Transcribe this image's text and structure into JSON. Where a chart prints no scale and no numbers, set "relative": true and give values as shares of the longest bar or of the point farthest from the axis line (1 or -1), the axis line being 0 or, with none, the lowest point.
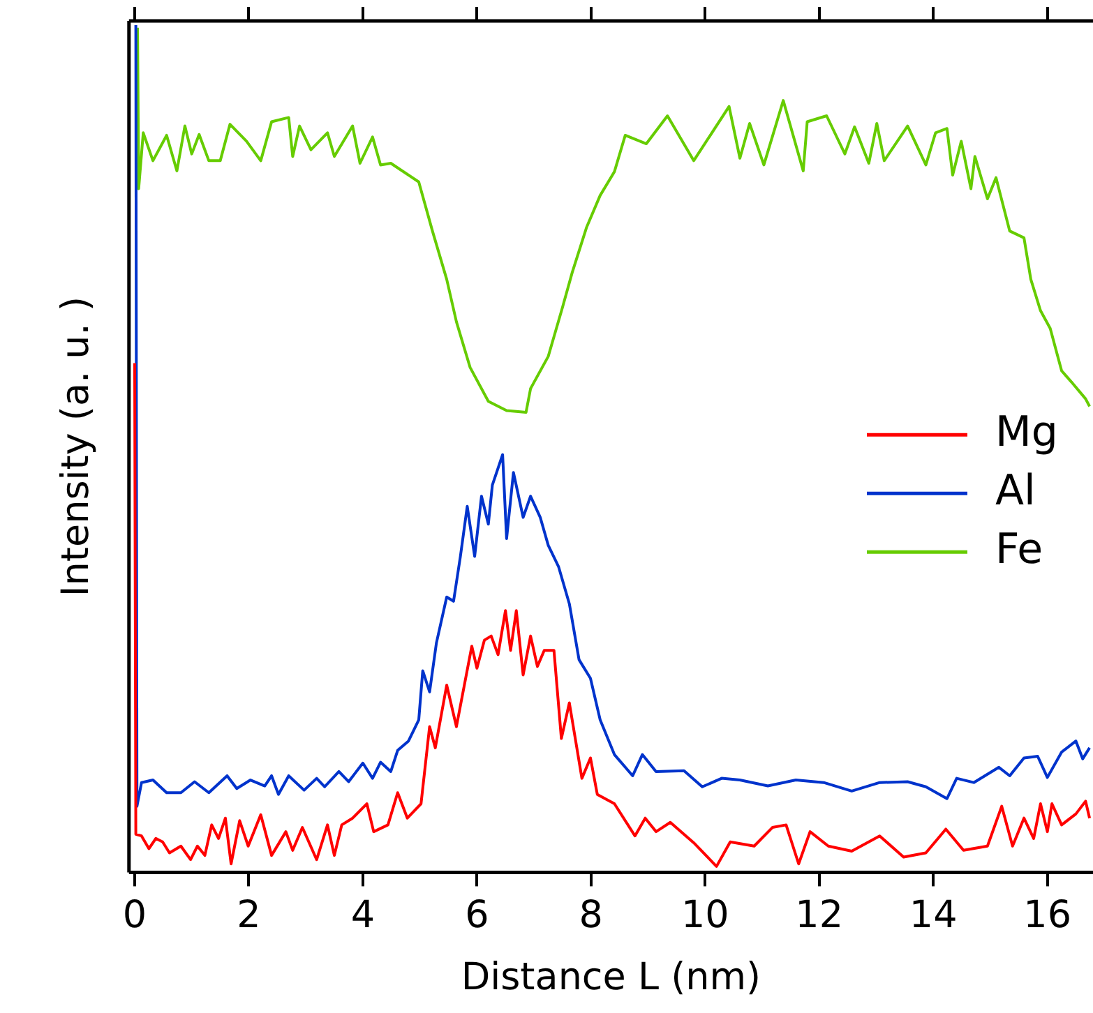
{
  "chart_data": {
    "type": "line",
    "xlabel": "Distance L (nm)",
    "ylabel": "Intensity (a. u. )",
    "relative": true,
    "xlim": [
      -0.1,
      16.8
    ],
    "xticks": [
      0,
      2,
      4,
      6,
      8,
      10,
      12,
      14,
      16
    ],
    "grid": false,
    "legend": "right",
    "marker": "none",
    "line_style": "solid",
    "series": [
      {
        "name": "Mg",
        "color": "#ff0000",
        "x": [
          0,
          0.02,
          0.12,
          0.25,
          0.37,
          0.49,
          0.61,
          0.81,
          0.98,
          1.1,
          1.23,
          1.35,
          1.47,
          1.59,
          1.69,
          1.84,
          1.99,
          2.21,
          2.4,
          2.65,
          2.77,
          2.94,
          3.19,
          3.38,
          3.5,
          3.63,
          3.82,
          4.07,
          4.19,
          4.44,
          4.61,
          4.78,
          5.02,
          5.17,
          5.27,
          5.47,
          5.64,
          5.91,
          6.0,
          6.13,
          6.25,
          6.37,
          6.5,
          6.59,
          6.69,
          6.81,
          6.94,
          7.06,
          7.18,
          7.35,
          7.48,
          7.62,
          7.84,
          7.99,
          8.11,
          8.41,
          8.77,
          8.95,
          9.14,
          9.39,
          9.8,
          10.2,
          10.44,
          10.86,
          11.18,
          11.42,
          11.64,
          11.84,
          12.16,
          12.57,
          13.06,
          13.48,
          13.87,
          14.22,
          14.53,
          14.95,
          15.2,
          15.39,
          15.59,
          15.76,
          15.88,
          16.0,
          16.08,
          16.25,
          16.5,
          16.67,
          16.74
        ],
        "values": [
          0.601,
          0.045,
          0.043,
          0.028,
          0.04,
          0.036,
          0.023,
          0.031,
          0.015,
          0.031,
          0.02,
          0.056,
          0.04,
          0.064,
          0.01,
          0.061,
          0.031,
          0.068,
          0.02,
          0.048,
          0.026,
          0.053,
          0.015,
          0.056,
          0.02,
          0.056,
          0.064,
          0.081,
          0.048,
          0.056,
          0.094,
          0.064,
          0.081,
          0.172,
          0.147,
          0.221,
          0.172,
          0.267,
          0.241,
          0.274,
          0.279,
          0.257,
          0.309,
          0.262,
          0.309,
          0.233,
          0.279,
          0.243,
          0.262,
          0.262,
          0.158,
          0.2,
          0.111,
          0.135,
          0.092,
          0.081,
          0.043,
          0.064,
          0.048,
          0.059,
          0.035,
          0.007,
          0.036,
          0.031,
          0.053,
          0.056,
          0.01,
          0.048,
          0.031,
          0.025,
          0.043,
          0.018,
          0.023,
          0.051,
          0.026,
          0.031,
          0.078,
          0.031,
          0.064,
          0.04,
          0.081,
          0.048,
          0.081,
          0.056,
          0.069,
          0.084,
          0.064
        ]
      },
      {
        "name": "Al",
        "color": "#0033cc",
        "x": [
          0.02,
          0.04,
          0.12,
          0.32,
          0.56,
          0.81,
          1.05,
          1.3,
          1.62,
          1.79,
          2.03,
          2.28,
          2.4,
          2.52,
          2.7,
          2.97,
          3.19,
          3.33,
          3.58,
          3.75,
          4.0,
          4.17,
          4.31,
          4.49,
          4.61,
          4.8,
          4.98,
          5.05,
          5.17,
          5.29,
          5.47,
          5.59,
          5.71,
          5.83,
          5.96,
          6.08,
          6.2,
          6.27,
          6.45,
          6.52,
          6.64,
          6.81,
          6.94,
          7.11,
          7.25,
          7.43,
          7.62,
          7.79,
          7.99,
          8.16,
          8.41,
          8.73,
          8.9,
          9.14,
          9.63,
          9.95,
          10.29,
          10.61,
          11.1,
          11.59,
          12.08,
          12.57,
          13.06,
          13.55,
          13.87,
          14.24,
          14.41,
          14.71,
          15.15,
          15.34,
          15.59,
          15.83,
          16.0,
          16.25,
          16.5,
          16.62,
          16.74
        ],
        "values": [
          1.0,
          0.078,
          0.106,
          0.109,
          0.094,
          0.094,
          0.107,
          0.094,
          0.114,
          0.099,
          0.109,
          0.102,
          0.114,
          0.092,
          0.114,
          0.097,
          0.111,
          0.101,
          0.119,
          0.107,
          0.129,
          0.111,
          0.13,
          0.119,
          0.144,
          0.155,
          0.18,
          0.238,
          0.213,
          0.271,
          0.325,
          0.32,
          0.373,
          0.432,
          0.373,
          0.444,
          0.411,
          0.457,
          0.493,
          0.394,
          0.472,
          0.419,
          0.444,
          0.419,
          0.386,
          0.361,
          0.317,
          0.251,
          0.229,
          0.18,
          0.139,
          0.114,
          0.139,
          0.119,
          0.12,
          0.101,
          0.111,
          0.109,
          0.102,
          0.109,
          0.106,
          0.096,
          0.106,
          0.107,
          0.101,
          0.087,
          0.111,
          0.106,
          0.124,
          0.114,
          0.135,
          0.137,
          0.112,
          0.142,
          0.155,
          0.134,
          0.147
        ]
      },
      {
        "name": "Fe",
        "color": "#66cc00",
        "x": [
          0.05,
          0.07,
          0.15,
          0.32,
          0.56,
          0.74,
          0.88,
          1.0,
          1.13,
          1.3,
          1.5,
          1.67,
          1.96,
          2.21,
          2.4,
          2.7,
          2.77,
          2.89,
          3.09,
          3.38,
          3.5,
          3.82,
          3.95,
          4.17,
          4.31,
          4.49,
          4.98,
          5.22,
          5.47,
          5.64,
          5.88,
          6.2,
          6.52,
          6.86,
          6.94,
          7.25,
          7.5,
          7.67,
          7.92,
          8.16,
          8.41,
          8.6,
          8.97,
          9.34,
          9.8,
          10.42,
          10.61,
          10.78,
          11.03,
          11.37,
          11.72,
          11.79,
          12.13,
          12.45,
          12.62,
          12.87,
          13.01,
          13.14,
          13.55,
          13.87,
          14.04,
          14.24,
          14.34,
          14.49,
          14.66,
          14.73,
          14.95,
          15.1,
          15.34,
          15.59,
          15.71,
          15.88,
          16.05,
          16.25,
          16.42,
          16.67,
          16.74
        ],
        "values": [
          0.997,
          0.807,
          0.873,
          0.84,
          0.87,
          0.828,
          0.881,
          0.848,
          0.871,
          0.84,
          0.84,
          0.883,
          0.863,
          0.84,
          0.886,
          0.891,
          0.845,
          0.881,
          0.853,
          0.873,
          0.845,
          0.881,
          0.837,
          0.868,
          0.835,
          0.837,
          0.815,
          0.757,
          0.7,
          0.65,
          0.596,
          0.556,
          0.545,
          0.543,
          0.571,
          0.609,
          0.667,
          0.708,
          0.761,
          0.799,
          0.827,
          0.87,
          0.86,
          0.893,
          0.84,
          0.904,
          0.843,
          0.884,
          0.835,
          0.911,
          0.828,
          0.886,
          0.893,
          0.848,
          0.88,
          0.837,
          0.884,
          0.84,
          0.881,
          0.835,
          0.873,
          0.878,
          0.823,
          0.863,
          0.807,
          0.845,
          0.795,
          0.82,
          0.757,
          0.749,
          0.7,
          0.663,
          0.642,
          0.592,
          0.579,
          0.559,
          0.55
        ]
      }
    ]
  }
}
